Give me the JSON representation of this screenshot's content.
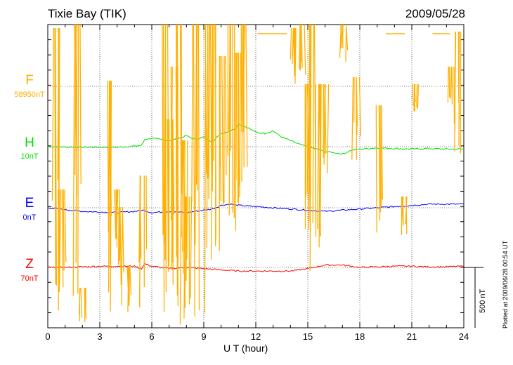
{
  "header": {
    "station": "Tixie Bay (TIK)",
    "date": "2009/05/28"
  },
  "components": [
    {
      "key": "F",
      "label": "F",
      "value": "58950nT",
      "color": "#FFB000",
      "baseline": 58950
    },
    {
      "key": "H",
      "label": "H",
      "value": "10nT",
      "color": "#00E000",
      "baseline": 10
    },
    {
      "key": "E",
      "label": "E",
      "value": "0nT",
      "color": "#0000FF",
      "baseline": 0
    },
    {
      "key": "Z",
      "label": "Z",
      "value": "70nT",
      "color": "#FF0000",
      "baseline": 70
    }
  ],
  "scale_bar": {
    "label": "500 nT"
  },
  "plotted_note": "Plotted at 2009/06/28 00:54 UT",
  "chart_data": {
    "type": "line",
    "title": "Tixie Bay (TIK)",
    "subtitle": "2009/05/28",
    "xlabel": "U T (hour)",
    "xlim": [
      0,
      24
    ],
    "xticks": [
      "0",
      "3",
      "6",
      "9",
      "12",
      "15",
      "18",
      "21",
      "24"
    ],
    "grid": true,
    "units": "nT",
    "series": [
      {
        "name": "H",
        "x": [
          0,
          2,
          4,
          5,
          5.4,
          5.6,
          6,
          7,
          7.5,
          8,
          8.5,
          9,
          9.5,
          10,
          10.5,
          10.8,
          11,
          11.5,
          12,
          12.5,
          13,
          13.5,
          14,
          14.5,
          15,
          16,
          16.5,
          17,
          17.5,
          18,
          19,
          20,
          21,
          22,
          23,
          24
        ],
        "y": [
          10,
          5,
          5,
          15,
          20,
          70,
          80,
          60,
          80,
          100,
          70,
          90,
          50,
          120,
          140,
          160,
          200,
          170,
          130,
          120,
          140,
          90,
          60,
          30,
          10,
          -30,
          -40,
          -50,
          -20,
          -10,
          0,
          -5,
          -10,
          -5,
          -10,
          -10
        ]
      },
      {
        "name": "E",
        "x": [
          0,
          2,
          4,
          5,
          5.5,
          6,
          7,
          8,
          9,
          9.5,
          10,
          10.5,
          11,
          12,
          13,
          14,
          15,
          16,
          17,
          18,
          19,
          20,
          21,
          22,
          23,
          24
        ],
        "y": [
          0,
          -30,
          -40,
          -30,
          -20,
          -40,
          -30,
          -40,
          -20,
          -10,
          20,
          30,
          20,
          10,
          0,
          -10,
          -20,
          -30,
          -20,
          -10,
          0,
          10,
          20,
          30,
          30,
          30
        ]
      },
      {
        "name": "Z",
        "x": [
          0,
          1,
          2,
          3,
          4,
          5,
          5.4,
          5.6,
          6,
          7,
          8,
          9,
          10,
          11,
          12,
          13,
          14,
          15,
          16,
          17,
          18,
          19,
          20,
          21,
          22,
          23,
          24
        ],
        "y": [
          70,
          70,
          75,
          80,
          80,
          80,
          60,
          100,
          80,
          60,
          70,
          60,
          50,
          40,
          40,
          40,
          40,
          60,
          90,
          90,
          70,
          75,
          80,
          80,
          75,
          75,
          80
        ]
      }
    ]
  }
}
